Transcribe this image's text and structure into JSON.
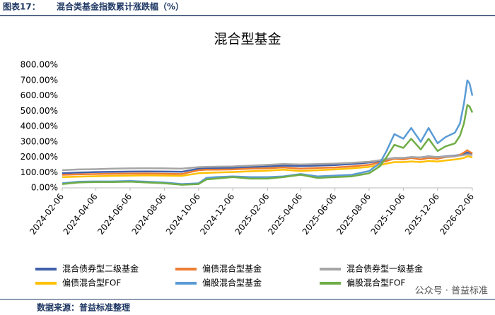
{
  "header": {
    "label": "图表17：",
    "title": "混合类基金指数累计涨跌幅（%）"
  },
  "footer": {
    "source": "数据来源：普益标准整理",
    "watermark": "公众号 · 普益标准"
  },
  "chart_data": {
    "type": "line",
    "title": "混合型基金",
    "x": [
      "2024-02-06",
      "2024-03-06",
      "2024-04-06",
      "2024-05-06",
      "2024-06-06",
      "2024-07-06",
      "2024-08-06",
      "2024-09-06",
      "2024-10-06",
      "2024-10-20",
      "2024-11-06",
      "2024-12-06",
      "2025-01-06",
      "2025-02-06",
      "2025-03-06",
      "2025-04-06",
      "2025-05-06",
      "2025-06-06",
      "2025-07-06",
      "2025-08-06",
      "2025-08-25",
      "2025-09-06",
      "2025-09-20",
      "2025-10-06",
      "2025-10-20",
      "2025-11-06",
      "2025-11-20",
      "2025-12-06",
      "2025-12-20",
      "2026-01-06",
      "2026-01-15",
      "2026-01-22",
      "2026-01-28",
      "2026-02-01",
      "2026-02-06"
    ],
    "series": [
      {
        "name": "混合债券型二级基金",
        "color": "#4060aa",
        "values": [
          95,
          100,
          103,
          105,
          106,
          107,
          106,
          105,
          125,
          127,
          128,
          130,
          135,
          140,
          145,
          142,
          145,
          148,
          155,
          165,
          175,
          185,
          195,
          195,
          200,
          198,
          205,
          200,
          205,
          210,
          215,
          220,
          230,
          228,
          222
        ]
      },
      {
        "name": "偏债混合型基金",
        "color": "#ed7d31",
        "values": [
          85,
          88,
          90,
          92,
          93,
          94,
          92,
          90,
          115,
          118,
          118,
          120,
          125,
          128,
          133,
          125,
          130,
          133,
          140,
          150,
          165,
          175,
          190,
          185,
          195,
          185,
          195,
          190,
          200,
          205,
          215,
          230,
          245,
          235,
          225
        ]
      },
      {
        "name": "混合债券型一级基金",
        "color": "#a5a5a5",
        "values": [
          115,
          120,
          122,
          125,
          127,
          128,
          127,
          125,
          135,
          137,
          138,
          140,
          145,
          150,
          155,
          152,
          155,
          158,
          163,
          170,
          180,
          188,
          195,
          195,
          200,
          198,
          203,
          200,
          203,
          207,
          210,
          213,
          218,
          216,
          213
        ]
      },
      {
        "name": "偏债混合型FOF",
        "color": "#ffc000",
        "values": [
          70,
          73,
          76,
          78,
          80,
          81,
          80,
          78,
          95,
          98,
          100,
          103,
          108,
          112,
          118,
          110,
          115,
          120,
          127,
          137,
          148,
          158,
          168,
          168,
          172,
          168,
          175,
          172,
          178,
          185,
          190,
          195,
          205,
          203,
          198
        ]
      },
      {
        "name": "偏股混合型基金",
        "color": "#5b9bd5",
        "values": [
          30,
          40,
          42,
          42,
          45,
          40,
          35,
          25,
          30,
          65,
          70,
          75,
          70,
          70,
          75,
          90,
          75,
          80,
          85,
          110,
          160,
          240,
          350,
          320,
          390,
          300,
          390,
          290,
          330,
          360,
          420,
          550,
          700,
          680,
          600
        ]
      },
      {
        "name": "偏股混合型FOF",
        "color": "#70ad47",
        "values": [
          25,
          35,
          38,
          38,
          40,
          35,
          30,
          20,
          25,
          55,
          60,
          70,
          60,
          60,
          70,
          85,
          65,
          70,
          75,
          95,
          140,
          200,
          280,
          260,
          320,
          250,
          320,
          240,
          270,
          290,
          340,
          420,
          540,
          530,
          490
        ]
      }
    ],
    "xlim": [
      "2024-02-06",
      "2026-02-06"
    ],
    "xticks": [
      "2024-02-06",
      "2024-04-06",
      "2024-06-06",
      "2024-08-06",
      "2024-10-06",
      "2024-12-06",
      "2025-02-06",
      "2025-04-06",
      "2025-06-06",
      "2025-08-06",
      "2025-10-06",
      "2025-12-06",
      "2026-02-06"
    ],
    "ylim": [
      0,
      800
    ],
    "yticks": [
      {
        "value": 0,
        "label": "0.00%"
      },
      {
        "value": 100,
        "label": "100.00%"
      },
      {
        "value": 200,
        "label": "200.00%"
      },
      {
        "value": 300,
        "label": "300.00%"
      },
      {
        "value": 400,
        "label": "400.00%"
      },
      {
        "value": 500,
        "label": "500.00%"
      },
      {
        "value": 600,
        "label": "600.00%"
      },
      {
        "value": 700,
        "label": "700.00%"
      },
      {
        "value": 800,
        "label": "800.00%"
      }
    ],
    "grid": false
  }
}
